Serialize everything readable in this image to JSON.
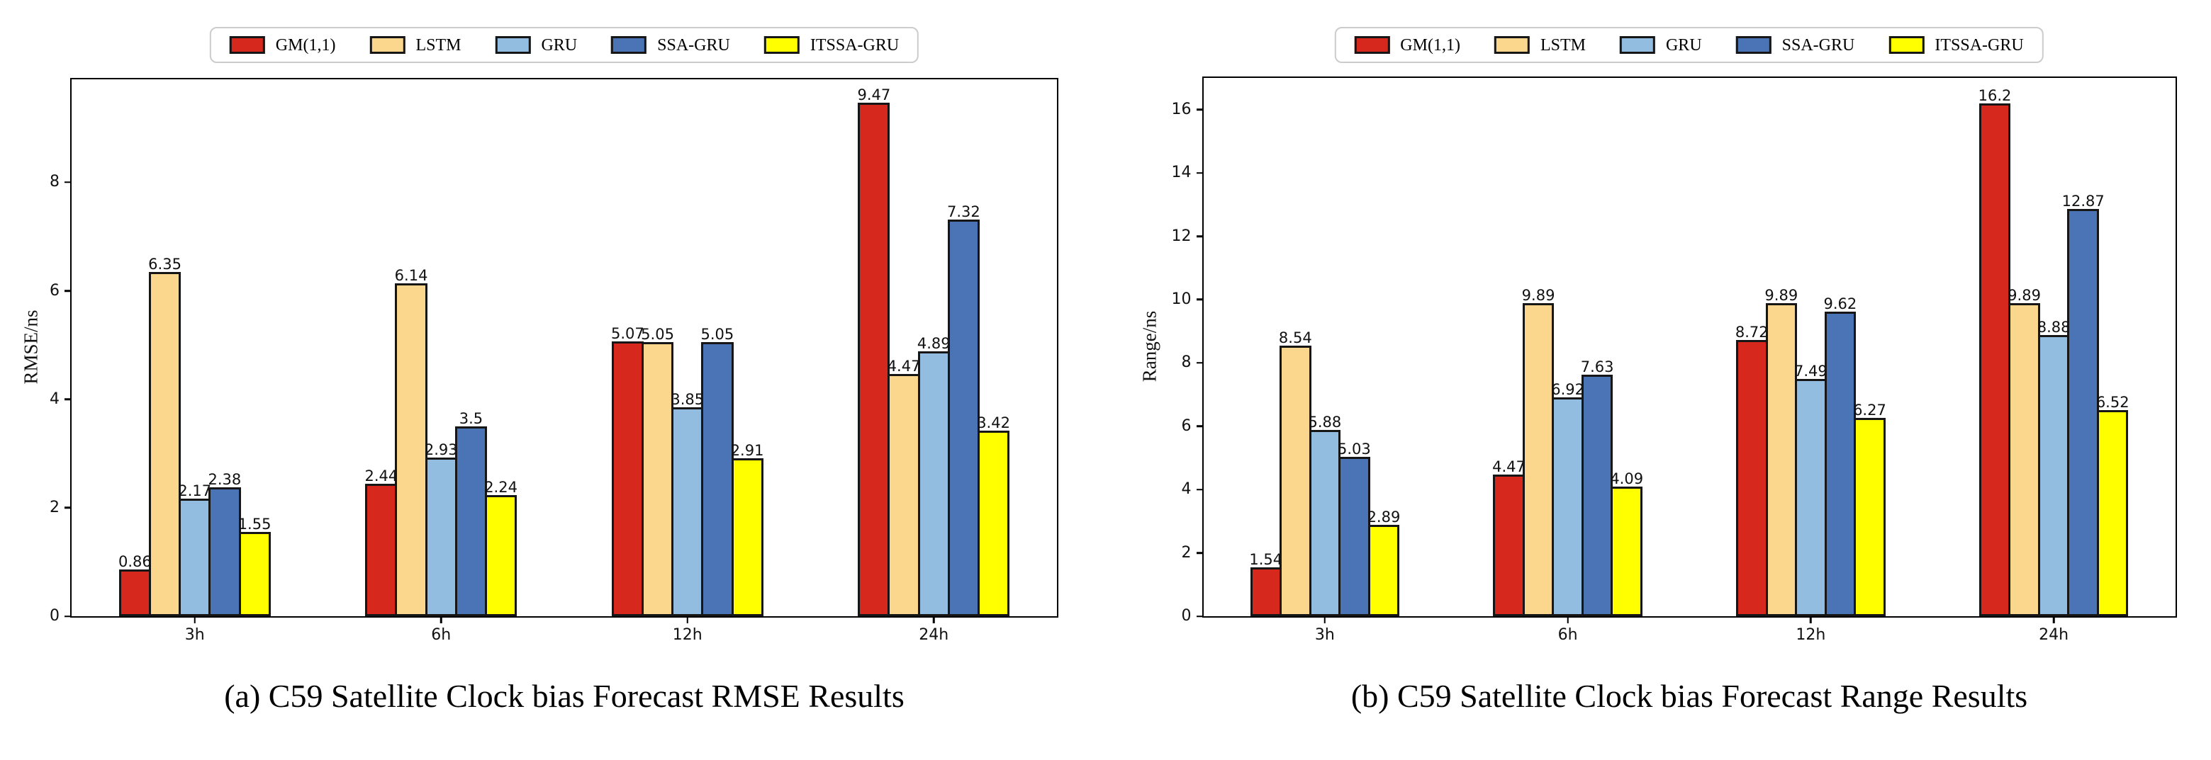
{
  "chart_data": [
    {
      "type": "bar",
      "caption": "(a) C59 Satellite Clock bias Forecast RMSE Results",
      "ylabel": "RMSE/ns",
      "xlabel": "",
      "categories": [
        "3h",
        "6h",
        "12h",
        "24h"
      ],
      "series": [
        {
          "name": "GM(1,1)",
          "color": "#d7281e",
          "values": [
            0.86,
            2.44,
            5.07,
            9.47
          ]
        },
        {
          "name": "LSTM",
          "color": "#fbd78e",
          "values": [
            6.35,
            6.14,
            5.05,
            4.47
          ]
        },
        {
          "name": "GRU",
          "color": "#92bde0",
          "values": [
            2.17,
            2.93,
            3.85,
            4.89
          ]
        },
        {
          "name": "SSA-GRU",
          "color": "#4a74b5",
          "values": [
            2.38,
            3.5,
            5.05,
            7.32
          ]
        },
        {
          "name": "ITSSA-GRU",
          "color": "#ffff00",
          "values": [
            1.55,
            2.24,
            2.91,
            3.42
          ]
        }
      ],
      "yticks": [
        0,
        2,
        4,
        6,
        8
      ],
      "ylim": [
        0,
        9.9
      ],
      "grid": false,
      "legend_position": "top-center"
    },
    {
      "type": "bar",
      "caption": "(b) C59 Satellite Clock bias Forecast Range Results",
      "ylabel": "Range/ns",
      "xlabel": "",
      "categories": [
        "3h",
        "6h",
        "12h",
        "24h"
      ],
      "series": [
        {
          "name": "GM(1,1)",
          "color": "#d7281e",
          "values": [
            1.54,
            4.47,
            8.72,
            16.2
          ]
        },
        {
          "name": "LSTM",
          "color": "#fbd78e",
          "values": [
            8.54,
            9.89,
            9.89,
            9.89
          ]
        },
        {
          "name": "GRU",
          "color": "#92bde0",
          "values": [
            5.88,
            6.92,
            7.49,
            8.88
          ]
        },
        {
          "name": "SSA-GRU",
          "color": "#4a74b5",
          "values": [
            5.03,
            7.63,
            9.62,
            12.87
          ]
        },
        {
          "name": "ITSSA-GRU",
          "color": "#ffff00",
          "values": [
            2.89,
            4.09,
            6.27,
            6.52
          ]
        }
      ],
      "yticks": [
        0,
        2,
        4,
        6,
        8,
        10,
        12,
        14,
        16
      ],
      "ylim": [
        0,
        17
      ],
      "grid": false,
      "legend_position": "top-center"
    }
  ]
}
